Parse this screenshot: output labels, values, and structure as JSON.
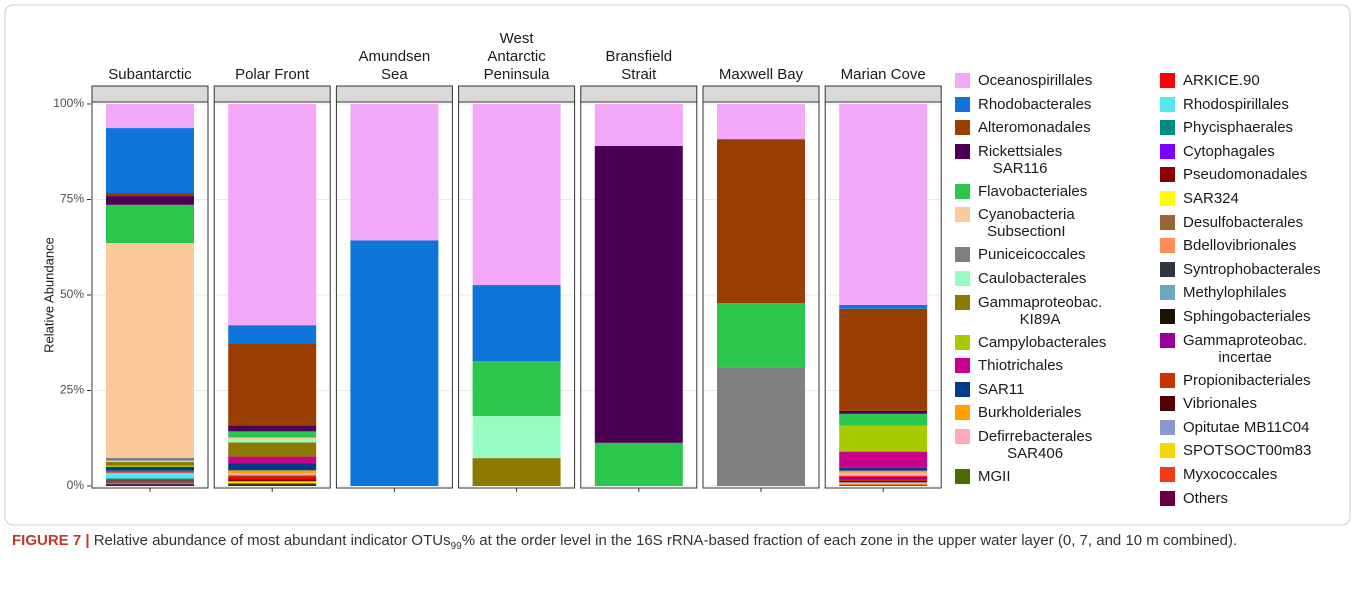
{
  "chart_data": {
    "type": "bar",
    "stacked": true,
    "y_label": "Relative Abundance",
    "categories": [
      "Subantarctic",
      "Polar Front",
      "Amundsen\nSea",
      "West\nAntarctic\nPeninsula",
      "Bransfield\nStrait",
      "Maxwell Bay",
      "Marian Cove"
    ],
    "ylim": [
      0,
      100
    ],
    "yticks": [
      {
        "value": 0,
        "label": "0%"
      },
      {
        "value": 25,
        "label": "25%"
      },
      {
        "value": 50,
        "label": "50%"
      },
      {
        "value": 75,
        "label": "75%"
      },
      {
        "value": 100,
        "label": "100%"
      }
    ],
    "grid": true,
    "series": [
      {
        "name": "Oceanospirillales",
        "color": "#f3a8f7",
        "values": [
          6.3,
          57.9,
          35.7,
          47.4,
          11,
          9.2,
          52.6
        ]
      },
      {
        "name": "Rhodobacterales",
        "color": "#0f74d9",
        "values": [
          17,
          4.7,
          64.3,
          19.9,
          0,
          0,
          1
        ]
      },
      {
        "name": "Alteromonadales",
        "color": "#993d00",
        "values": [
          0.8,
          21.5,
          0,
          0,
          0,
          42.9,
          26.7
        ]
      },
      {
        "name": "Rickettsiales\nSAR116",
        "color": "#4b0055",
        "values": [
          2.3,
          1.6,
          0,
          0,
          77.7,
          0,
          0.8
        ]
      },
      {
        "name": "Flavobacteriales",
        "color": "#2bc64e",
        "values": [
          10,
          1.6,
          0,
          14.4,
          11.3,
          16.8,
          3.1
        ]
      },
      {
        "name": "Cyanobacteria\nSubsectionI",
        "color": "#fcc99a",
        "values": [
          56.2,
          0.5,
          0,
          0,
          0,
          0,
          0
        ]
      },
      {
        "name": "Puniceicoccales",
        "color": "#808080",
        "values": [
          0.8,
          0,
          0,
          0,
          0,
          31.1,
          0
        ]
      },
      {
        "name": "Caulobacterales",
        "color": "#99fbbf",
        "values": [
          0.3,
          0.8,
          0,
          11,
          0,
          0,
          0
        ]
      },
      {
        "name": "Gammaproteobac.\nKI89A",
        "color": "#8c7a00",
        "values": [
          1,
          3.7,
          0,
          7.3,
          0,
          0,
          0
        ]
      },
      {
        "name": "Campylobacterales",
        "color": "#a6cc00",
        "values": [
          0.3,
          0,
          0,
          0,
          0,
          0,
          6.8
        ]
      },
      {
        "name": "Thiotrichales",
        "color": "#c8008c",
        "values": [
          0,
          1.8,
          0,
          0,
          0,
          0,
          4.2
        ]
      },
      {
        "name": "SAR11",
        "color": "#003b8c",
        "values": [
          1,
          1.8,
          0,
          0,
          0,
          0,
          0.8
        ]
      },
      {
        "name": "Burkholderiales",
        "color": "#ffa000",
        "values": [
          0,
          0.8,
          0,
          0,
          0,
          0,
          0.5
        ]
      },
      {
        "name": "Defirrebacterales\nSAR406",
        "color": "#ffaabb",
        "values": [
          0,
          0.5,
          0,
          0,
          0,
          0,
          0.8
        ]
      },
      {
        "name": "MGII",
        "color": "#4a6b00",
        "values": [
          0.3,
          0.3,
          0,
          0,
          0,
          0,
          0
        ]
      },
      {
        "name": "ARKICE.90",
        "color": "#ff0000",
        "values": [
          0.2,
          0.8,
          0,
          0,
          0,
          0,
          0.3
        ]
      },
      {
        "name": "Rhodospirillales",
        "color": "#55e8f0",
        "values": [
          1.5,
          0,
          0,
          0,
          0,
          0,
          0
        ]
      },
      {
        "name": "Phycisphaerales",
        "color": "#008b80",
        "values": [
          0.5,
          0,
          0,
          0,
          0,
          0,
          0
        ]
      },
      {
        "name": "Cytophagales",
        "color": "#7a00ff",
        "values": [
          0,
          0,
          0,
          0,
          0,
          0,
          0
        ]
      },
      {
        "name": "Pseudomonadales",
        "color": "#8b0000",
        "values": [
          0.3,
          0.5,
          0,
          0,
          0,
          0,
          0
        ]
      },
      {
        "name": "SAR324",
        "color": "#ffff00",
        "values": [
          0,
          0.4,
          0,
          0,
          0,
          0,
          0
        ]
      },
      {
        "name": "Desulfobacterales",
        "color": "#996633",
        "values": [
          0.3,
          0.3,
          0,
          0,
          0,
          0,
          0
        ]
      },
      {
        "name": "Bdellovibrionales",
        "color": "#ff8c5a",
        "values": [
          0,
          0,
          0,
          0,
          0,
          0,
          0
        ]
      },
      {
        "name": "Syntrophobacterales",
        "color": "#2f3640",
        "values": [
          0.2,
          0,
          0,
          0,
          0,
          0,
          0
        ]
      },
      {
        "name": "Methylophilales",
        "color": "#6aa8bb",
        "values": [
          0.2,
          0,
          0,
          0,
          0,
          0,
          0
        ]
      },
      {
        "name": "Sphingobacteriales",
        "color": "#1a1205",
        "values": [
          0,
          0.2,
          0,
          0,
          0,
          0,
          0
        ]
      },
      {
        "name": "Gammaproteobac.\nincertae",
        "color": "#990099",
        "values": [
          0,
          0,
          0,
          0,
          0,
          0,
          0.8
        ]
      },
      {
        "name": "Propionibacteriales",
        "color": "#cc3300",
        "values": [
          0,
          0,
          0,
          0,
          0,
          0,
          0.3
        ]
      },
      {
        "name": "Vibrionales",
        "color": "#550000",
        "values": [
          0,
          0,
          0,
          0,
          0,
          0,
          0.3
        ]
      },
      {
        "name": "Opitutae MB11C04",
        "color": "#8899cc",
        "values": [
          0,
          0,
          0,
          0,
          0,
          0,
          0.3
        ]
      },
      {
        "name": "SPOTSOCT00m83",
        "color": "#f5d800",
        "values": [
          0,
          0,
          0,
          0,
          0,
          0,
          0.3
        ]
      },
      {
        "name": "Myxococcales",
        "color": "#f23b1c",
        "values": [
          0,
          0,
          0,
          0,
          0,
          0,
          0.2
        ]
      },
      {
        "name": "Others",
        "color": "#660044",
        "values": [
          0.5,
          0.3,
          0,
          0,
          0,
          0,
          0.2
        ]
      }
    ]
  },
  "caption": {
    "label": "FIGURE 7 |",
    "text_before": "Relative abundance of most abundant indicator OTUs",
    "subscript": "99",
    "text_after": "% at the order level in the 16S rRNA-based fraction of each zone in the upper water layer (0, 7, and 10 m combined)."
  }
}
